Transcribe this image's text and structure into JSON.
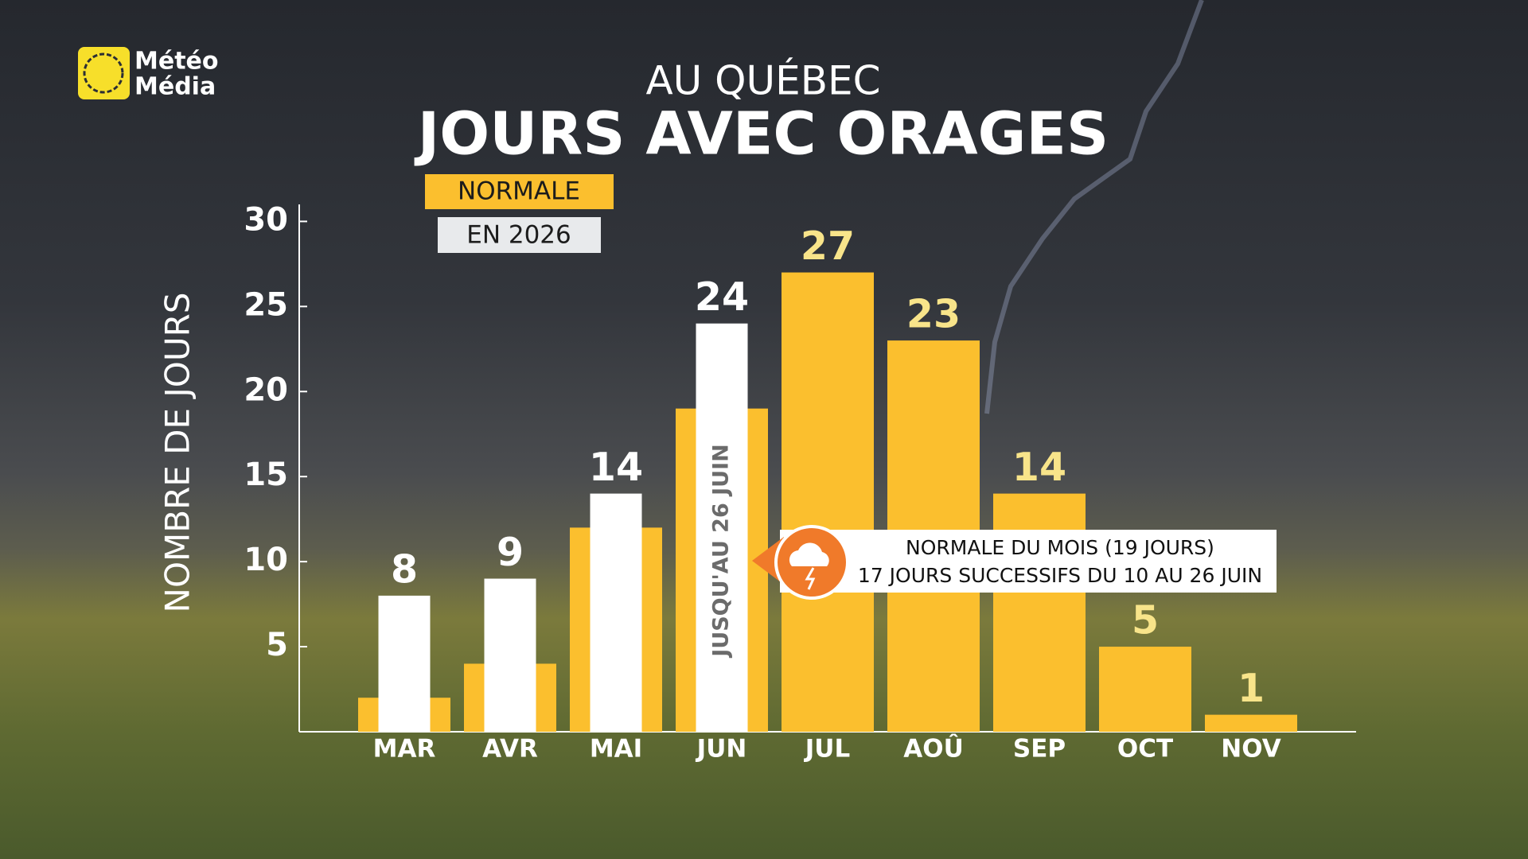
{
  "brand": [
    "Météo",
    "Média"
  ],
  "chart_data": {
    "type": "bar",
    "subtitle": "AU QUÉBEC",
    "title": "JOURS AVEC ORAGES",
    "y_label": "NOMBRE DE JOURS",
    "categories": [
      "MAR",
      "AVR",
      "MAI",
      "JUN",
      "JUL",
      "AOÛ",
      "SEP",
      "OCT",
      "NOV"
    ],
    "series": [
      {
        "name": "NORMALE",
        "color": "#fbbf2e",
        "values": [
          2,
          4,
          12,
          19,
          27,
          23,
          14,
          5,
          1
        ]
      },
      {
        "name": "EN 2026",
        "color": "#ffffff",
        "values": [
          8,
          9,
          14,
          24,
          null,
          null,
          null,
          null,
          null
        ]
      }
    ],
    "ylim": [
      0,
      31
    ],
    "yticks": [
      5,
      10,
      15,
      20,
      25,
      30
    ],
    "annotations": {
      "bar_note": "JUSQU'AU 26 JUIN",
      "callout": [
        "NORMALE DU MOIS (19 JOURS)",
        "17 JOURS SUCCESSIFS DU 10 AU 26 JUIN"
      ]
    }
  }
}
